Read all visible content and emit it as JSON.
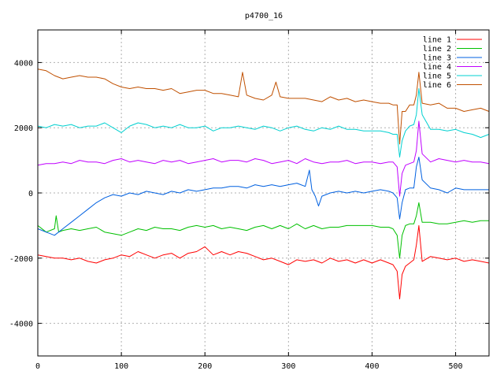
{
  "chart_data": {
    "type": "line",
    "title": "p4700_16",
    "xlabel": "",
    "ylabel": "",
    "xlim": [
      0,
      540
    ],
    "ylim": [
      -5000,
      5000
    ],
    "x_ticks": [
      0,
      100,
      200,
      300,
      400,
      500
    ],
    "y_ticks": [
      -4000,
      -2000,
      0,
      2000,
      4000
    ],
    "grid": true,
    "legend_position": "top-right",
    "series": [
      {
        "name": "line 1",
        "color": "#ff0000",
        "x": [
          0,
          10,
          20,
          30,
          40,
          50,
          60,
          70,
          80,
          90,
          100,
          110,
          120,
          130,
          140,
          150,
          160,
          170,
          180,
          190,
          200,
          210,
          220,
          230,
          240,
          250,
          260,
          270,
          280,
          290,
          300,
          310,
          320,
          330,
          340,
          350,
          360,
          370,
          380,
          390,
          400,
          410,
          420,
          425,
          430,
          433,
          436,
          440,
          445,
          450,
          453,
          456,
          460,
          470,
          480,
          490,
          500,
          510,
          520,
          530,
          540
        ],
        "y": [
          -1900,
          -1950,
          -2000,
          -2000,
          -2050,
          -2000,
          -2100,
          -2150,
          -2050,
          -2000,
          -1900,
          -1950,
          -1800,
          -1900,
          -2000,
          -1900,
          -1850,
          -2000,
          -1850,
          -1800,
          -1650,
          -1900,
          -1800,
          -1900,
          -1800,
          -1850,
          -1950,
          -2050,
          -2000,
          -2100,
          -2200,
          -2050,
          -2100,
          -2050,
          -2150,
          -2000,
          -2100,
          -2050,
          -2150,
          -2050,
          -2150,
          -2050,
          -2150,
          -2200,
          -2400,
          -3250,
          -2500,
          -2250,
          -2150,
          -2050,
          -1600,
          -1000,
          -2100,
          -1950,
          -2000,
          -2050,
          -2000,
          -2100,
          -2050,
          -2100,
          -2150
        ]
      },
      {
        "name": "line 2",
        "color": "#00c000",
        "x": [
          0,
          10,
          20,
          22,
          25,
          30,
          40,
          50,
          60,
          70,
          80,
          90,
          100,
          110,
          120,
          130,
          140,
          150,
          160,
          170,
          180,
          190,
          200,
          210,
          220,
          230,
          240,
          250,
          260,
          270,
          280,
          290,
          300,
          310,
          320,
          330,
          340,
          350,
          360,
          370,
          380,
          390,
          400,
          410,
          420,
          425,
          430,
          433,
          436,
          440,
          445,
          450,
          453,
          456,
          460,
          470,
          480,
          490,
          500,
          510,
          520,
          530,
          540
        ],
        "y": [
          -1000,
          -1200,
          -1100,
          -700,
          -1200,
          -1150,
          -1100,
          -1150,
          -1100,
          -1050,
          -1200,
          -1250,
          -1300,
          -1200,
          -1100,
          -1150,
          -1050,
          -1100,
          -1100,
          -1150,
          -1050,
          -1000,
          -1050,
          -1000,
          -1100,
          -1050,
          -1100,
          -1150,
          -1050,
          -1000,
          -1100,
          -1000,
          -1100,
          -950,
          -1100,
          -1000,
          -1100,
          -1050,
          -1050,
          -1000,
          -1000,
          -1000,
          -1000,
          -1050,
          -1050,
          -1100,
          -1300,
          -2000,
          -1300,
          -1000,
          -950,
          -950,
          -700,
          -300,
          -900,
          -900,
          -950,
          -950,
          -900,
          -850,
          -900,
          -850,
          -850
        ]
      },
      {
        "name": "line 3",
        "color": "#0060e0",
        "x": [
          0,
          10,
          20,
          30,
          40,
          50,
          60,
          70,
          80,
          90,
          100,
          110,
          120,
          130,
          140,
          150,
          160,
          170,
          180,
          190,
          200,
          210,
          220,
          230,
          240,
          250,
          260,
          270,
          280,
          290,
          300,
          310,
          320,
          325,
          328,
          332,
          336,
          340,
          350,
          360,
          370,
          380,
          390,
          400,
          410,
          420,
          425,
          430,
          433,
          436,
          440,
          445,
          450,
          453,
          456,
          460,
          470,
          480,
          490,
          500,
          510,
          520,
          530,
          540
        ],
        "y": [
          -1100,
          -1200,
          -1300,
          -1100,
          -900,
          -700,
          -500,
          -300,
          -150,
          -50,
          -100,
          0,
          -50,
          50,
          0,
          -50,
          50,
          0,
          100,
          50,
          100,
          150,
          150,
          200,
          200,
          150,
          250,
          200,
          250,
          200,
          250,
          300,
          200,
          700,
          100,
          -100,
          -400,
          -100,
          0,
          50,
          0,
          50,
          0,
          50,
          100,
          50,
          0,
          -150,
          -800,
          -300,
          100,
          150,
          150,
          800,
          1100,
          400,
          150,
          100,
          0,
          150,
          100,
          100,
          100,
          100
        ]
      },
      {
        "name": "line 4",
        "color": "#c000ff",
        "x": [
          0,
          10,
          20,
          30,
          40,
          50,
          60,
          70,
          80,
          90,
          100,
          110,
          120,
          130,
          140,
          150,
          160,
          170,
          180,
          190,
          200,
          210,
          220,
          230,
          240,
          250,
          260,
          270,
          280,
          290,
          300,
          310,
          320,
          330,
          340,
          350,
          360,
          370,
          380,
          390,
          400,
          410,
          420,
          425,
          430,
          433,
          436,
          440,
          445,
          450,
          453,
          456,
          460,
          470,
          480,
          490,
          500,
          510,
          520,
          530,
          540
        ],
        "y": [
          850,
          900,
          900,
          950,
          900,
          1000,
          950,
          950,
          900,
          1000,
          1050,
          950,
          1000,
          950,
          900,
          1000,
          950,
          1000,
          900,
          950,
          1000,
          1050,
          950,
          1000,
          1000,
          950,
          1050,
          1000,
          900,
          950,
          1000,
          900,
          1050,
          950,
          900,
          950,
          950,
          1000,
          900,
          950,
          950,
          900,
          950,
          950,
          800,
          -100,
          600,
          850,
          900,
          950,
          1300,
          2200,
          1200,
          950,
          1050,
          1000,
          950,
          1000,
          950,
          950,
          900
        ]
      },
      {
        "name": "line 5",
        "color": "#00d0d0",
        "x": [
          0,
          10,
          20,
          30,
          40,
          50,
          60,
          70,
          80,
          90,
          100,
          110,
          120,
          130,
          140,
          150,
          160,
          170,
          180,
          190,
          200,
          210,
          220,
          230,
          240,
          250,
          260,
          270,
          280,
          290,
          300,
          310,
          320,
          330,
          340,
          350,
          360,
          370,
          380,
          390,
          400,
          410,
          420,
          425,
          430,
          433,
          436,
          440,
          445,
          450,
          453,
          456,
          460,
          470,
          480,
          490,
          500,
          510,
          520,
          530,
          540
        ],
        "y": [
          2050,
          2000,
          2100,
          2050,
          2100,
          2000,
          2050,
          2050,
          2150,
          2000,
          1850,
          2050,
          2150,
          2100,
          2000,
          2050,
          2000,
          2100,
          2000,
          2000,
          2050,
          1900,
          2000,
          2000,
          2050,
          2000,
          1950,
          2050,
          2000,
          1900,
          2000,
          2050,
          1950,
          1900,
          2000,
          1950,
          2050,
          1950,
          1950,
          1900,
          1900,
          1900,
          1850,
          1800,
          1800,
          1100,
          1600,
          1900,
          2050,
          2100,
          2400,
          3200,
          2400,
          1950,
          1950,
          1900,
          1950,
          1850,
          1800,
          1700,
          1800
        ]
      },
      {
        "name": "line 6",
        "color": "#c05000",
        "x": [
          0,
          10,
          20,
          30,
          40,
          50,
          60,
          70,
          80,
          90,
          100,
          110,
          120,
          130,
          140,
          150,
          160,
          170,
          180,
          190,
          200,
          210,
          220,
          230,
          240,
          245,
          250,
          260,
          270,
          280,
          285,
          290,
          300,
          310,
          320,
          330,
          340,
          350,
          360,
          370,
          380,
          390,
          400,
          410,
          420,
          425,
          430,
          433,
          436,
          440,
          445,
          450,
          453,
          456,
          460,
          470,
          480,
          490,
          500,
          510,
          520,
          530,
          540
        ],
        "y": [
          3800,
          3750,
          3600,
          3500,
          3550,
          3600,
          3550,
          3550,
          3500,
          3350,
          3250,
          3200,
          3250,
          3200,
          3200,
          3150,
          3200,
          3050,
          3100,
          3150,
          3150,
          3050,
          3050,
          3000,
          2950,
          3700,
          3000,
          2900,
          2850,
          3000,
          3400,
          2950,
          2900,
          2900,
          2900,
          2850,
          2800,
          2950,
          2850,
          2900,
          2800,
          2850,
          2800,
          2750,
          2750,
          2700,
          2700,
          1500,
          2500,
          2500,
          2700,
          2700,
          3000,
          3700,
          2750,
          2700,
          2750,
          2600,
          2600,
          2500,
          2550,
          2600,
          2500
        ]
      }
    ]
  }
}
